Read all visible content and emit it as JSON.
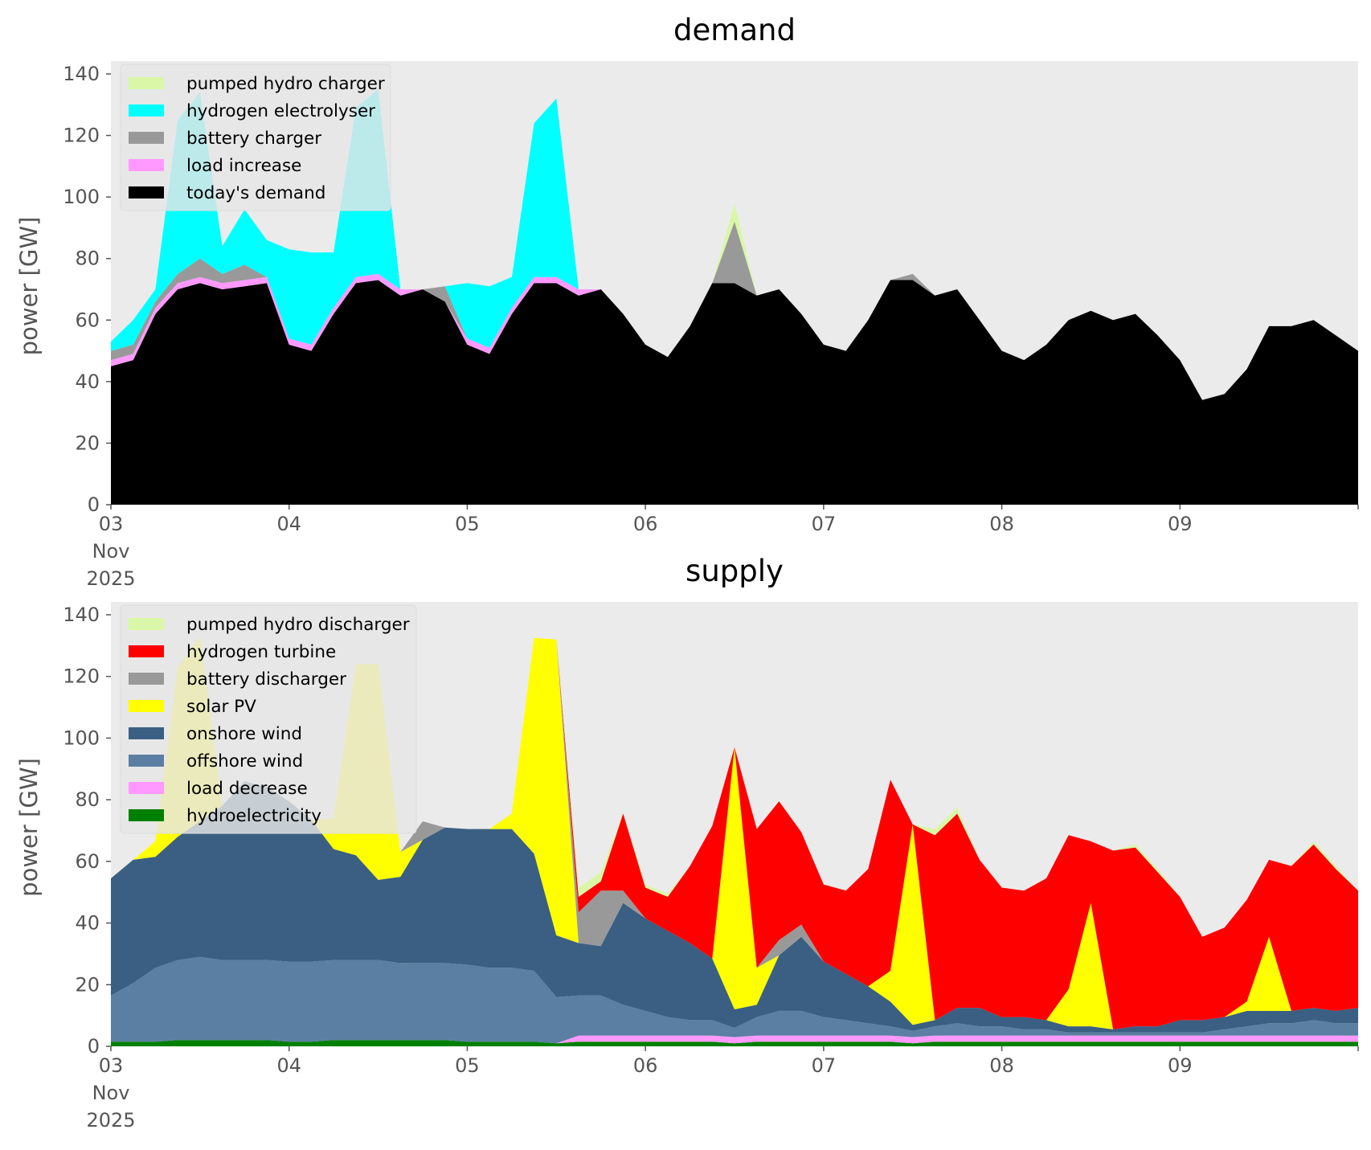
{
  "chart_data": [
    {
      "type": "area",
      "stacked": true,
      "title": "demand",
      "xlabel": "",
      "ylabel": "power [GW]",
      "ylim": [
        0,
        140
      ],
      "yticks": [
        0,
        20,
        40,
        60,
        80,
        100,
        120,
        140
      ],
      "x_range": [
        "2025-11-03 00:00",
        "2025-11-10 00:00"
      ],
      "x_tick_labels": [
        "03\nNov\n2025",
        "04",
        "05",
        "06",
        "07",
        "08",
        "09"
      ],
      "grid": false,
      "background": "#ebebeb",
      "legend_position": "top-left",
      "x": [
        "2025-11-03 00:00",
        "2025-11-03 03:00",
        "2025-11-03 06:00",
        "2025-11-03 09:00",
        "2025-11-03 12:00",
        "2025-11-03 15:00",
        "2025-11-03 18:00",
        "2025-11-03 21:00",
        "2025-11-04 00:00",
        "2025-11-04 03:00",
        "2025-11-04 06:00",
        "2025-11-04 09:00",
        "2025-11-04 12:00",
        "2025-11-04 15:00",
        "2025-11-04 18:00",
        "2025-11-04 21:00",
        "2025-11-05 00:00",
        "2025-11-05 03:00",
        "2025-11-05 06:00",
        "2025-11-05 09:00",
        "2025-11-05 12:00",
        "2025-11-05 15:00",
        "2025-11-05 18:00",
        "2025-11-05 21:00",
        "2025-11-06 00:00",
        "2025-11-06 03:00",
        "2025-11-06 06:00",
        "2025-11-06 09:00",
        "2025-11-06 12:00",
        "2025-11-06 15:00",
        "2025-11-06 18:00",
        "2025-11-06 21:00",
        "2025-11-07 00:00",
        "2025-11-07 03:00",
        "2025-11-07 06:00",
        "2025-11-07 09:00",
        "2025-11-07 12:00",
        "2025-11-07 15:00",
        "2025-11-07 18:00",
        "2025-11-07 21:00",
        "2025-11-08 00:00",
        "2025-11-08 03:00",
        "2025-11-08 06:00",
        "2025-11-08 09:00",
        "2025-11-08 12:00",
        "2025-11-08 15:00",
        "2025-11-08 18:00",
        "2025-11-08 21:00",
        "2025-11-09 00:00",
        "2025-11-09 03:00",
        "2025-11-09 06:00",
        "2025-11-09 09:00",
        "2025-11-09 12:00",
        "2025-11-09 15:00",
        "2025-11-09 18:00",
        "2025-11-09 21:00",
        "2025-11-10 00:00"
      ],
      "series": [
        {
          "name": "today's demand",
          "color": "#000000",
          "values": [
            45,
            47,
            62,
            70,
            72,
            70,
            71,
            72,
            52,
            50,
            62,
            72,
            73,
            68,
            70,
            66,
            52,
            49,
            62,
            72,
            72,
            68,
            70,
            62,
            52,
            48,
            58,
            72,
            72,
            68,
            70,
            62,
            52,
            50,
            60,
            73,
            73,
            68,
            70,
            60,
            50,
            47,
            52,
            60,
            63,
            60,
            62,
            55,
            47,
            34,
            36,
            44,
            58,
            58,
            60,
            55,
            50
          ]
        },
        {
          "name": "load increase",
          "color": "#ff99ff",
          "values": [
            2,
            2,
            2,
            2,
            2,
            2,
            2,
            2,
            2,
            2,
            2,
            2,
            2,
            2,
            0,
            0,
            2,
            2,
            2,
            2,
            2,
            2,
            0,
            0,
            0,
            0,
            0,
            0,
            0,
            0,
            0,
            0,
            0,
            0,
            0,
            0,
            0,
            0,
            0,
            0,
            0,
            0,
            0,
            0,
            0,
            0,
            0,
            0,
            0,
            0,
            0,
            0,
            0,
            0,
            0,
            0,
            0
          ]
        },
        {
          "name": "battery charger",
          "color": "#999999",
          "values": [
            3,
            3,
            2,
            3,
            6,
            3,
            5,
            0,
            0,
            0,
            0,
            0,
            0,
            0,
            0,
            5,
            0,
            0,
            0,
            0,
            0,
            0,
            0,
            0,
            0,
            0,
            0,
            0,
            20,
            0,
            0,
            0,
            0,
            0,
            0,
            0,
            2,
            0,
            0,
            0,
            0,
            0,
            0,
            0,
            0,
            0,
            0,
            0,
            0,
            0,
            0,
            0,
            0,
            0,
            0,
            0,
            0
          ]
        },
        {
          "name": "hydrogen electrolyser",
          "color": "#00ffff",
          "values": [
            3,
            8,
            4,
            50,
            54,
            9,
            18,
            12,
            29,
            30,
            18,
            55,
            60,
            0,
            0,
            0,
            18,
            20,
            10,
            50,
            58,
            0,
            0,
            0,
            0,
            0,
            0,
            0,
            0,
            0,
            0,
            0,
            0,
            0,
            0,
            0,
            0,
            0,
            0,
            0,
            0,
            0,
            0,
            0,
            0,
            0,
            0,
            0,
            0,
            0,
            0,
            0,
            0,
            0,
            0,
            0,
            0
          ]
        },
        {
          "name": "pumped hydro charger",
          "color": "#d9f7a6",
          "values": [
            0,
            0,
            0,
            0,
            0,
            0,
            0,
            0,
            0,
            0,
            0,
            0,
            0,
            0,
            0,
            0,
            0,
            0,
            0,
            0,
            0,
            0,
            0,
            0,
            0,
            0,
            0,
            0,
            6,
            0,
            0,
            0,
            0,
            0,
            0,
            0,
            0,
            0,
            0,
            0,
            0,
            0,
            0,
            0,
            0,
            0,
            0,
            0,
            0,
            0,
            0,
            0,
            0,
            0,
            0,
            0,
            0
          ]
        }
      ],
      "legend": [
        "pumped hydro charger",
        "hydrogen electrolyser",
        "battery charger",
        "load increase",
        "today's demand"
      ]
    },
    {
      "type": "area",
      "stacked": true,
      "title": "supply",
      "xlabel": "",
      "ylabel": "power [GW]",
      "ylim": [
        0,
        140
      ],
      "yticks": [
        0,
        20,
        40,
        60,
        80,
        100,
        120,
        140
      ],
      "x_range": [
        "2025-11-03 00:00",
        "2025-11-10 00:00"
      ],
      "x_tick_labels": [
        "03\nNov\n2025",
        "04",
        "05",
        "06",
        "07",
        "08",
        "09"
      ],
      "grid": false,
      "background": "#ebebeb",
      "legend_position": "top-left",
      "x": [
        "2025-11-03 00:00",
        "2025-11-03 03:00",
        "2025-11-03 06:00",
        "2025-11-03 09:00",
        "2025-11-03 12:00",
        "2025-11-03 15:00",
        "2025-11-03 18:00",
        "2025-11-03 21:00",
        "2025-11-04 00:00",
        "2025-11-04 03:00",
        "2025-11-04 06:00",
        "2025-11-04 09:00",
        "2025-11-04 12:00",
        "2025-11-04 15:00",
        "2025-11-04 18:00",
        "2025-11-04 21:00",
        "2025-11-05 00:00",
        "2025-11-05 03:00",
        "2025-11-05 06:00",
        "2025-11-05 09:00",
        "2025-11-05 12:00",
        "2025-11-05 15:00",
        "2025-11-05 18:00",
        "2025-11-05 21:00",
        "2025-11-06 00:00",
        "2025-11-06 03:00",
        "2025-11-06 06:00",
        "2025-11-06 09:00",
        "2025-11-06 12:00",
        "2025-11-06 15:00",
        "2025-11-06 18:00",
        "2025-11-06 21:00",
        "2025-11-07 00:00",
        "2025-11-07 03:00",
        "2025-11-07 06:00",
        "2025-11-07 09:00",
        "2025-11-07 12:00",
        "2025-11-07 15:00",
        "2025-11-07 18:00",
        "2025-11-07 21:00",
        "2025-11-08 00:00",
        "2025-11-08 03:00",
        "2025-11-08 06:00",
        "2025-11-08 09:00",
        "2025-11-08 12:00",
        "2025-11-08 15:00",
        "2025-11-08 18:00",
        "2025-11-08 21:00",
        "2025-11-09 00:00",
        "2025-11-09 03:00",
        "2025-11-09 06:00",
        "2025-11-09 09:00",
        "2025-11-09 12:00",
        "2025-11-09 15:00",
        "2025-11-09 18:00",
        "2025-11-09 21:00",
        "2025-11-10 00:00"
      ],
      "series": [
        {
          "name": "hydroelectricity",
          "color": "#008000",
          "values": [
            1.5,
            1.5,
            1.5,
            2,
            2,
            2,
            2,
            2,
            1.5,
            1.5,
            2,
            2,
            2,
            2,
            2,
            2,
            1.5,
            1.5,
            1.5,
            1.5,
            1,
            1.5,
            1.5,
            1.5,
            1.5,
            1.5,
            1.5,
            1.5,
            1,
            1.5,
            1.5,
            1.5,
            1.5,
            1.5,
            1.5,
            1.5,
            1,
            1.5,
            1.5,
            1.5,
            1.5,
            1.5,
            1.5,
            1.5,
            1.5,
            1.5,
            1.5,
            1.5,
            1.5,
            1.5,
            1.5,
            1.5,
            1.5,
            1.5,
            1.5,
            1.5,
            1.5
          ]
        },
        {
          "name": "load decrease",
          "color": "#ff99ff",
          "values": [
            0,
            0,
            0,
            0,
            0,
            0,
            0,
            0,
            0,
            0,
            0,
            0,
            0,
            0,
            0,
            0,
            0,
            0,
            0,
            0,
            0,
            2,
            2,
            2,
            2,
            2,
            2,
            2,
            2,
            2,
            2,
            2,
            2,
            2,
            2,
            2,
            2,
            2,
            2,
            2,
            2,
            2,
            2,
            2,
            2,
            2,
            2,
            2,
            2,
            2,
            2,
            2,
            2,
            2,
            2,
            2,
            2
          ]
        },
        {
          "name": "offshore wind",
          "color": "#5b7fa2",
          "values": [
            15,
            19,
            24,
            26,
            27,
            26,
            26,
            26,
            26,
            26,
            26,
            26,
            26,
            25,
            25,
            25,
            25,
            24,
            24,
            23,
            15,
            13,
            13,
            10,
            8,
            6,
            5,
            5,
            3,
            6,
            8,
            8,
            6,
            5,
            4,
            3,
            2,
            3,
            4,
            3,
            3,
            2,
            2,
            1,
            1,
            1,
            1,
            1,
            1,
            1,
            2,
            3,
            4,
            4,
            5,
            4,
            4
          ]
        },
        {
          "name": "onshore wind",
          "color": "#3a5f82",
          "values": [
            38,
            40,
            36,
            40,
            44,
            50,
            58,
            56,
            52,
            46,
            36,
            34,
            26,
            28,
            40,
            44,
            44,
            45,
            45,
            38,
            20,
            17,
            16,
            33,
            30,
            28,
            25,
            20,
            6,
            4,
            18,
            24,
            18,
            15,
            12,
            8,
            2,
            2,
            5,
            6,
            3,
            4,
            3,
            2,
            2,
            1,
            2,
            2,
            4,
            4,
            4,
            5,
            4,
            4,
            4,
            4,
            5
          ]
        },
        {
          "name": "solar PV",
          "color": "#ffff00",
          "values": [
            0,
            0,
            5,
            55,
            60,
            0,
            0,
            0,
            0,
            0,
            10,
            62,
            70,
            8,
            0,
            0,
            0,
            0,
            5,
            70,
            96,
            0,
            0,
            0,
            0,
            0,
            0,
            0,
            85,
            12,
            0,
            0,
            0,
            0,
            0,
            10,
            65,
            0,
            0,
            0,
            0,
            0,
            0,
            12,
            40,
            0,
            0,
            0,
            0,
            0,
            0,
            3,
            24,
            0,
            0,
            0,
            0
          ]
        },
        {
          "name": "battery discharger",
          "color": "#999999",
          "values": [
            0,
            0,
            0,
            0,
            0,
            0,
            0,
            0,
            0,
            0,
            0,
            0,
            0,
            0,
            6,
            0,
            0,
            0,
            0,
            0,
            0,
            10,
            18,
            4,
            0,
            0,
            0,
            0,
            0,
            0,
            5,
            4,
            0,
            0,
            0,
            0,
            0,
            0,
            0,
            0,
            0,
            0,
            0,
            0,
            0,
            0,
            0,
            0,
            0,
            0,
            0,
            0,
            0,
            0,
            0,
            0,
            0
          ]
        },
        {
          "name": "hydrogen turbine",
          "color": "#ff0000",
          "values": [
            0,
            0,
            0,
            0,
            0,
            0,
            0,
            0,
            0,
            0,
            0,
            0,
            0,
            0,
            0,
            0,
            0,
            0,
            0,
            0,
            0,
            5,
            3,
            25,
            10,
            11,
            25,
            43,
            0,
            45,
            45,
            30,
            25,
            27,
            38,
            62,
            0,
            60,
            63,
            48,
            42,
            41,
            46,
            50,
            20,
            58,
            58,
            50,
            40,
            27,
            29,
            33,
            25,
            47,
            53,
            46,
            38
          ]
        },
        {
          "name": "pumped hydro discharger",
          "color": "#d9f7a6",
          "values": [
            0,
            0,
            0,
            0,
            0,
            0,
            0,
            0,
            0,
            0,
            0,
            0,
            0,
            0,
            0,
            0,
            0,
            0,
            0,
            0,
            0,
            3,
            3,
            0,
            1,
            1,
            0,
            0,
            0,
            0,
            0,
            0,
            0,
            0,
            0,
            0,
            0,
            2,
            2,
            0,
            0,
            0,
            0,
            0,
            0,
            0,
            1,
            1,
            0,
            0,
            0,
            0,
            0,
            0,
            1,
            1,
            0
          ]
        }
      ],
      "legend": [
        "pumped hydro discharger",
        "hydrogen turbine",
        "battery discharger",
        "solar PV",
        "onshore wind",
        "offshore wind",
        "load decrease",
        "hydroelectricity"
      ]
    }
  ]
}
